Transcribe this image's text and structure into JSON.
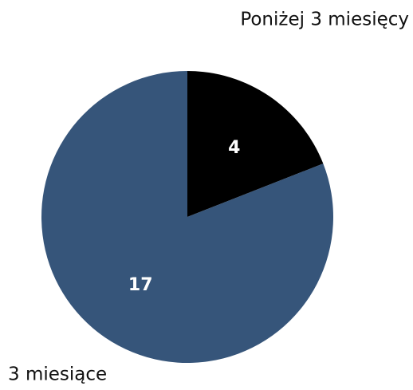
{
  "chart_data": {
    "type": "pie",
    "categories": [
      "Poniżej 3 miesięcy",
      "3 miesiące"
    ],
    "values": [
      4,
      17
    ],
    "colors": [
      "#000000",
      "#36557a"
    ]
  }
}
